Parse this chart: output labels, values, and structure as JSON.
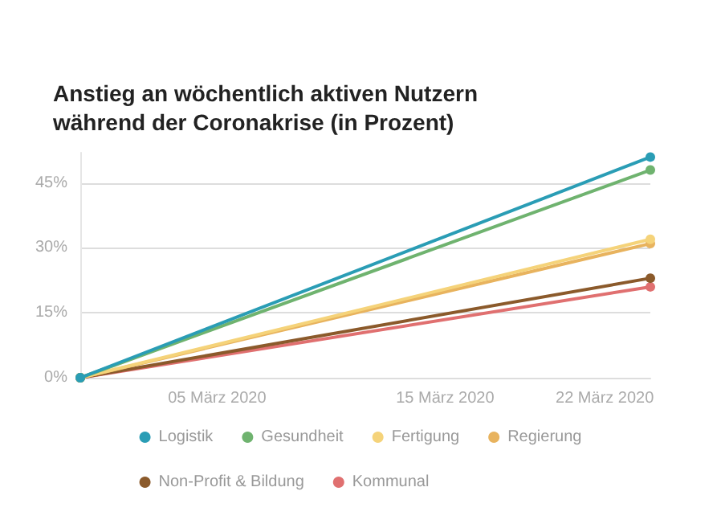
{
  "chart_data": {
    "type": "line",
    "title": "Anstieg an wöchentlich aktiven Nutzern während der Coronakrise (in Prozent)",
    "x": [
      "2020-02-28",
      "2020-03-24"
    ],
    "series": [
      {
        "name": "Logistik",
        "color": "#2a9db5",
        "values": [
          0,
          51
        ]
      },
      {
        "name": "Gesundheit",
        "color": "#6fb36f",
        "values": [
          0,
          48
        ]
      },
      {
        "name": "Fertigung",
        "color": "#f5d37a",
        "values": [
          0,
          32
        ]
      },
      {
        "name": "Regierung",
        "color": "#e8b35e",
        "values": [
          0,
          31
        ]
      },
      {
        "name": "Non-Profit & Bildung",
        "color": "#8b5a2b",
        "values": [
          0,
          23
        ]
      },
      {
        "name": "Kommunal",
        "color": "#e07070",
        "values": [
          0,
          21
        ]
      }
    ],
    "xlim": [
      "2020-02-28",
      "2020-03-24"
    ],
    "xticks": [
      {
        "value": "2020-03-05",
        "label": "05 März 2020"
      },
      {
        "value": "2020-03-15",
        "label": "15 März 2020"
      },
      {
        "value": "2020-03-22",
        "label": "22 März 2020"
      }
    ],
    "ylim": [
      0,
      52
    ],
    "yticks": [
      {
        "value": 0,
        "label": "0%"
      },
      {
        "value": 15,
        "label": "15%"
      },
      {
        "value": 30,
        "label": "30%"
      },
      {
        "value": 45,
        "label": "45%"
      }
    ],
    "grid": "y",
    "legend": "bottom",
    "marker": "circle",
    "line_style": "solid"
  }
}
